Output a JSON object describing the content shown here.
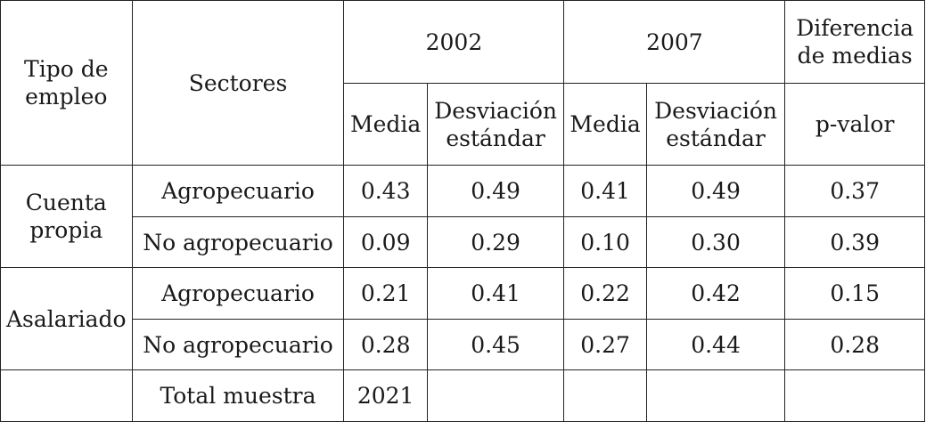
{
  "header": {
    "tipo_de_empleo": "Tipo de empleo",
    "sectores": "Sectores",
    "year_2002": "2002",
    "year_2007": "2007",
    "diferencia_de_medias": "Diferencia de medias",
    "media": "Media",
    "desviacion_estandar": "Desviación estándar",
    "p_valor": "p-valor"
  },
  "rows": [
    {
      "tipo": "Cuenta propia",
      "sector": "Agropecuario",
      "media_2002": "0.43",
      "de_2002": "0.49",
      "media_2007": "0.41",
      "de_2007": "0.49",
      "p_valor": "0.37"
    },
    {
      "sector": "No agropecuario",
      "media_2002": "0.09",
      "de_2002": "0.29",
      "media_2007": "0.10",
      "de_2007": "0.30",
      "p_valor": "0.39"
    },
    {
      "tipo": "Asalariado",
      "sector": "Agropecuario",
      "media_2002": "0.21",
      "de_2002": "0.41",
      "media_2007": "0.22",
      "de_2007": "0.42",
      "p_valor": "0.15"
    },
    {
      "sector": "No agropecuario",
      "media_2002": "0.28",
      "de_2002": "0.45",
      "media_2007": "0.27",
      "de_2007": "0.44",
      "p_valor": "0.28"
    }
  ],
  "total": {
    "label": "Total muestra",
    "value": "2021"
  }
}
